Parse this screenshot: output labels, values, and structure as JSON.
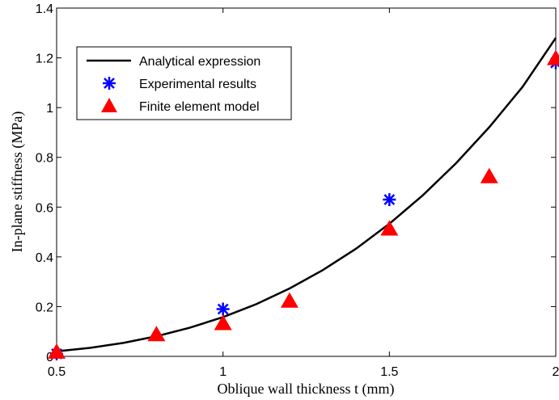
{
  "chart_data": {
    "type": "line",
    "xlabel": "Oblique wall thickness t (mm)",
    "ylabel": "In-plane stiffness (MPa)",
    "xlim": [
      0.5,
      2
    ],
    "ylim": [
      0,
      1.4
    ],
    "xticks": [
      0.5,
      1,
      1.5,
      2
    ],
    "xtick_labels": [
      "0.5",
      "1",
      "1.5",
      "2"
    ],
    "yticks": [
      0,
      0.2,
      0.4,
      0.6,
      0.8,
      1,
      1.2,
      1.4
    ],
    "ytick_labels": [
      "0",
      "0.2",
      "0.4",
      "0.6",
      "0.8",
      "1",
      "1.2",
      "1.4"
    ],
    "grid": false,
    "legend_position": "top-left",
    "series": [
      {
        "name": "Analytical expression",
        "style": "line",
        "color": "#000000",
        "x": [
          0.5,
          0.6,
          0.7,
          0.8,
          0.9,
          1.0,
          1.1,
          1.2,
          1.3,
          1.4,
          1.5,
          1.6,
          1.7,
          1.8,
          1.9,
          2.0
        ],
        "y": [
          0.02,
          0.034,
          0.054,
          0.081,
          0.115,
          0.158,
          0.21,
          0.273,
          0.347,
          0.433,
          0.533,
          0.647,
          0.776,
          0.921,
          1.083,
          1.28
        ]
      },
      {
        "name": "Experimental results",
        "style": "asterisk",
        "color": "#0000ff",
        "x": [
          0.5,
          1.0,
          1.5,
          2.0
        ],
        "y": [
          0.01,
          0.19,
          0.63,
          1.18
        ]
      },
      {
        "name": "Finite element model",
        "style": "triangle",
        "color": "#ff0000",
        "x": [
          0.5,
          0.8,
          1.0,
          1.2,
          1.5,
          1.8,
          2.0
        ],
        "y": [
          0.02,
          0.09,
          0.135,
          0.225,
          0.515,
          0.725,
          1.2
        ]
      }
    ]
  }
}
